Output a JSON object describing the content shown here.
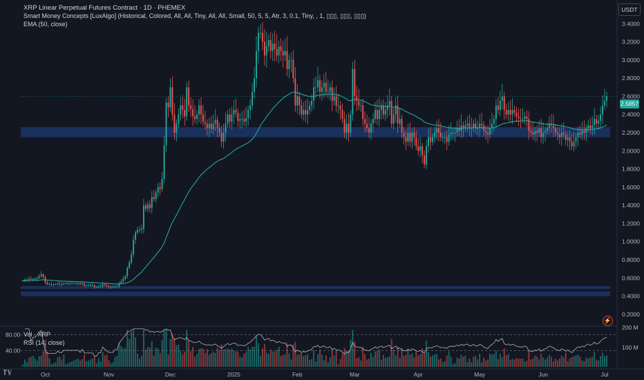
{
  "header": {
    "title": "XRP Linear Perpetual Futures Contract · 1D · PHEMEX",
    "indicator1": "Smart Money Concepts [LuxAlgo] (Historical, Colored, All, All, Tiny, All, All, Small, 50, 5, 5, Atr, 3, 0.1, Tiny, , 1, ▯▯▯, ▯▯▯, ▯▯▯)",
    "indicator2": "EMA (50, close)"
  },
  "currency": "USDT",
  "current_price": "2.5857",
  "subpanes": {
    "vol_label": "Vol · XRP",
    "rsi_label": "RSI (14, close)",
    "rsi_ticks": [
      "80.00",
      "40.00"
    ],
    "vol_ticks": [
      "200 M",
      "100 M"
    ]
  },
  "icons": {
    "alert": "lightning-icon",
    "logo": "tradingview-logo"
  },
  "colors": {
    "up": "#26a69a",
    "down": "#ef5350",
    "ema": "#26a69a",
    "background": "#131722",
    "zone": "#1e3a70",
    "rsi": "#b2b5be"
  },
  "chart_data": {
    "type": "candlestick",
    "price_axis_ticks": [
      "3.4000",
      "3.2000",
      "3.0000",
      "2.8000",
      "2.6000",
      "2.4000",
      "2.2000",
      "2.0000",
      "1.8000",
      "1.6000",
      "1.4000",
      "1.2000",
      "1.0000",
      "0.8000",
      "0.6000",
      "0.4000",
      "0.2000"
    ],
    "time_axis_ticks": [
      "Oct",
      "Nov",
      "Dec",
      "2025",
      "Feb",
      "Mar",
      "Apr",
      "May",
      "Jun",
      "Jul"
    ],
    "ylim": [
      0.1,
      3.6
    ],
    "ema_period": 50,
    "zones": [
      {
        "from": 0.48,
        "to": 0.51
      },
      {
        "from": 0.4,
        "to": 0.45
      },
      {
        "from": 2.15,
        "to": 2.26
      }
    ],
    "candles_start": "2024-09-20",
    "closes": [
      0.57,
      0.58,
      0.58,
      0.59,
      0.58,
      0.59,
      0.59,
      0.6,
      0.62,
      0.64,
      0.61,
      0.55,
      0.53,
      0.53,
      0.53,
      0.53,
      0.53,
      0.54,
      0.53,
      0.53,
      0.54,
      0.54,
      0.54,
      0.54,
      0.54,
      0.54,
      0.54,
      0.54,
      0.53,
      0.54,
      0.52,
      0.52,
      0.52,
      0.52,
      0.52,
      0.5,
      0.5,
      0.51,
      0.51,
      0.53,
      0.52,
      0.51,
      0.5,
      0.5,
      0.5,
      0.51,
      0.51,
      0.54,
      0.56,
      0.59,
      0.62,
      0.71,
      0.77,
      0.86,
      1.02,
      1.1,
      1.13,
      1.13,
      1.14,
      1.4,
      1.36,
      1.41,
      1.37,
      1.49,
      1.47,
      1.54,
      1.6,
      1.58,
      1.69,
      2.06,
      2.53,
      2.48,
      2.7,
      2.4,
      2.2,
      2.3,
      2.4,
      2.5,
      2.45,
      2.38,
      2.7,
      2.5,
      2.46,
      2.38,
      2.35,
      2.4,
      2.5,
      2.4,
      2.32,
      2.3,
      2.25,
      2.3,
      2.24,
      2.3,
      2.34,
      2.25,
      2.2,
      2.1,
      2.2,
      2.3,
      2.4,
      2.32,
      2.4,
      2.45,
      2.42,
      2.33,
      2.35,
      2.35,
      2.32,
      2.36,
      2.45,
      2.5,
      2.65,
      2.8,
      3.1,
      3.3,
      3.3,
      3.2,
      3.05,
      3.15,
      3.22,
      3.1,
      3.18,
      3.12,
      3.05,
      3.15,
      3.1,
      3.05,
      3.1,
      2.9,
      3.0,
      3.0,
      2.8,
      2.5,
      2.6,
      2.5,
      2.4,
      2.45,
      2.4,
      2.45,
      2.5,
      2.55,
      2.7,
      2.7,
      2.78,
      2.65,
      2.7,
      2.75,
      2.65,
      2.65,
      2.7,
      2.55,
      2.6,
      2.5,
      2.5,
      2.45,
      2.35,
      2.2,
      2.3,
      2.2,
      2.4,
      2.9,
      2.6,
      2.55,
      2.5,
      2.5,
      2.35,
      2.3,
      2.25,
      2.2,
      2.3,
      2.35,
      2.45,
      2.35,
      2.45,
      2.5,
      2.4,
      2.45,
      2.5,
      2.55,
      2.3,
      2.4,
      2.5,
      2.3,
      2.35,
      2.2,
      2.15,
      2.1,
      2.2,
      2.1,
      2.2,
      2.15,
      2.05,
      2.0,
      2.05,
      1.95,
      1.85,
      2.05,
      2.15,
      2.1,
      2.15,
      2.2,
      2.25,
      2.2,
      2.15,
      2.15,
      2.15,
      2.1,
      2.18,
      2.2,
      2.2,
      2.2,
      2.25,
      2.22,
      2.28,
      2.25,
      2.28,
      2.3,
      2.25,
      2.25,
      2.3,
      2.25,
      2.25,
      2.3,
      2.28,
      2.22,
      2.2,
      2.18,
      2.25,
      2.3,
      2.35,
      2.5,
      2.45,
      2.55,
      2.6,
      2.45,
      2.4,
      2.45,
      2.4,
      2.45,
      2.42,
      2.38,
      2.36,
      2.35,
      2.35,
      2.38,
      2.35,
      2.22,
      2.2,
      2.18,
      2.22,
      2.2,
      2.25,
      2.15,
      2.2,
      2.22,
      2.25,
      2.3,
      2.28,
      2.25,
      2.2,
      2.18,
      2.15,
      2.2,
      2.18,
      2.12,
      2.15,
      2.1,
      2.05,
      2.1,
      2.15,
      2.2,
      2.18,
      2.22,
      2.2,
      2.25,
      2.28,
      2.25,
      2.28,
      2.35,
      2.3,
      2.33,
      2.4,
      2.5,
      2.55,
      2.6
    ],
    "rsi_levels": [
      80,
      40
    ],
    "vol_ylim": [
      0,
      200
    ]
  }
}
